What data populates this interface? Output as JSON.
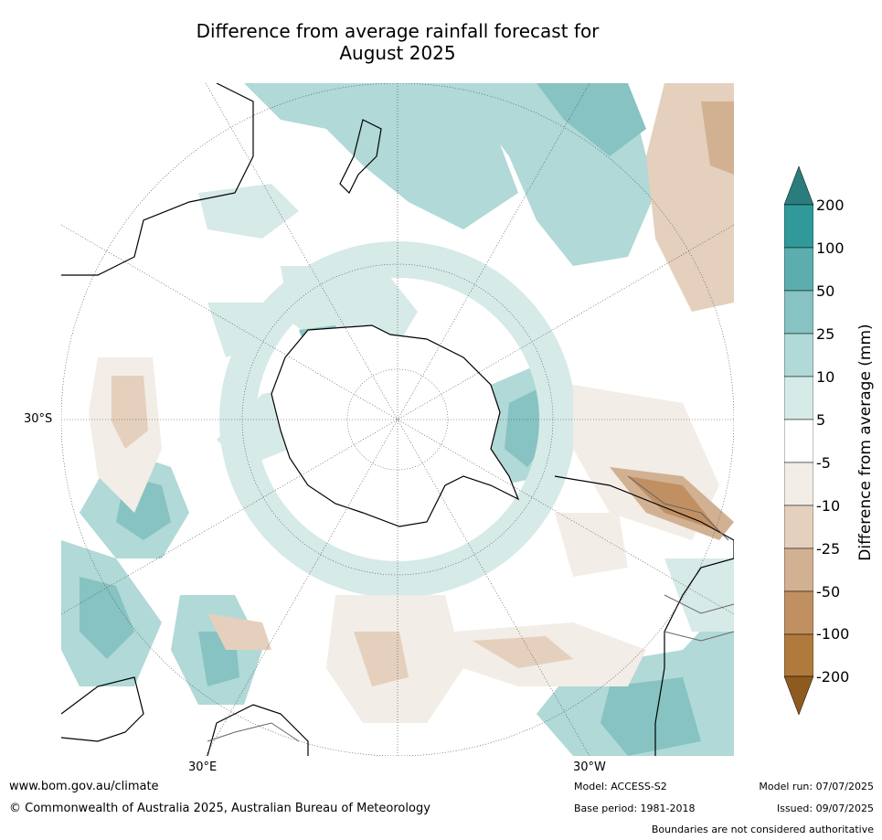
{
  "title_line1": "Difference from average rainfall forecast for",
  "title_line2": "August 2025",
  "map": {
    "lat_label": "30°S",
    "lon_label_left": "30°E",
    "lon_label_right": "30°W"
  },
  "colorbar": {
    "title": "Difference from average (mm)",
    "ticks": [
      "200",
      "100",
      "50",
      "25",
      "10",
      "5",
      "-5",
      "-10",
      "-25",
      "-50",
      "-100",
      "-200"
    ],
    "colors": [
      "#2b7d7d",
      "#32999a",
      "#5caeae",
      "#86c3c2",
      "#b0d9d7",
      "#d6eae8",
      "#ffffff",
      "#f2ede6",
      "#e4d0bd",
      "#d2b192",
      "#c09063",
      "#b07a3c",
      "#8e5a1f"
    ]
  },
  "footer": {
    "url": "www.bom.gov.au/climate",
    "copyright": "© Commonwealth of Australia 2025, Australian Bureau of Meteorology",
    "model": "Model: ACCESS-S2",
    "base_period": "Base period: 1981-2018",
    "model_run": "Model run: 07/07/2025",
    "issued": "Issued: 09/07/2025",
    "disclaimer": "Boundaries are not considered authoritative"
  }
}
